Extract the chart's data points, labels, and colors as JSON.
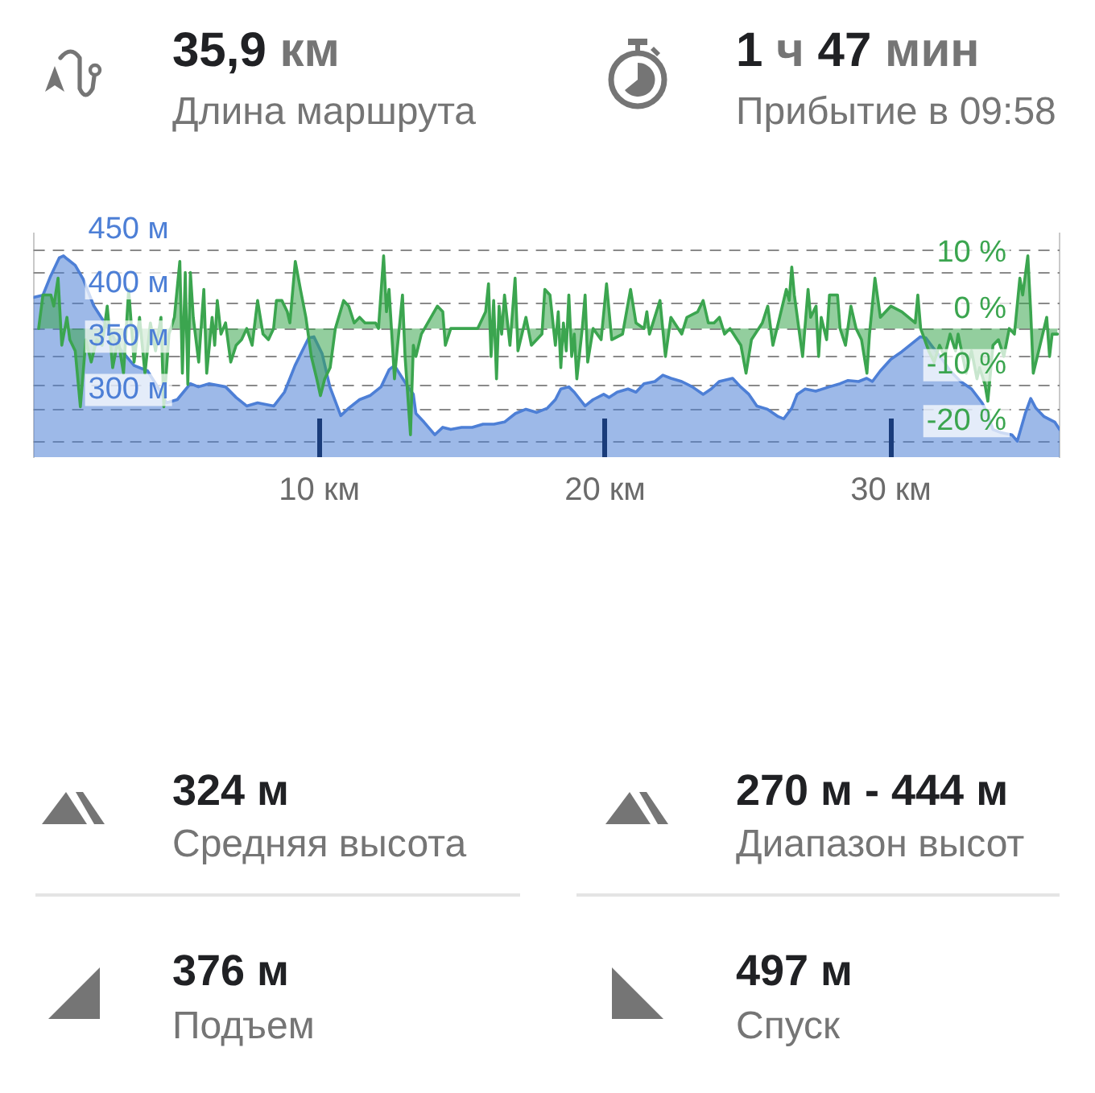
{
  "chart_data": [
    {
      "type": "other",
      "annotations": [
        "35,9 км",
        "Длина маршрута",
        "1 ч 47 мин",
        "Прибытие в 09:58"
      ]
    },
    {
      "type": "area",
      "xlim": [
        0,
        35.9
      ],
      "xticks": [
        {
          "value": 10,
          "label": "10 км"
        },
        {
          "value": 20,
          "label": "20 км"
        },
        {
          "value": 30,
          "label": "30 км"
        }
      ],
      "ylim": [
        255,
        465
      ],
      "yticks": [
        {
          "value": 300,
          "label": "300 м"
        },
        {
          "value": 350,
          "label": "350 м"
        },
        {
          "value": 400,
          "label": "400 м"
        },
        {
          "value": 450,
          "label": "450 м"
        }
      ],
      "y2lim": [
        -23,
        17
      ],
      "y2ticks": [
        {
          "value": -20,
          "label": "-20 %"
        },
        {
          "value": -10,
          "label": "-10 %"
        },
        {
          "value": 0,
          "label": "0 %"
        },
        {
          "value": 10,
          "label": "10 %"
        }
      ],
      "grid": "y",
      "marker": "none",
      "series": [
        {
          "color": "#4d7fd6",
          "x": [
            0,
            0.33,
            0.6,
            0.9,
            1.05,
            1.18,
            1.46,
            1.74,
            2.11,
            2.59,
            3.05,
            3.52,
            3.99,
            4.46,
            4.65,
            5.03,
            5.49,
            5.77,
            6.15,
            6.72,
            7.09,
            7.46,
            7.84,
            8.41,
            8.78,
            9.15,
            9.63,
            9.81,
            10.1,
            10.37,
            10.75,
            11.03,
            11.41,
            11.79,
            12.16,
            12.44,
            12.63,
            12.91,
            13.1,
            13.29,
            13.38,
            13.66,
            14.04,
            14.32,
            14.6,
            14.98,
            15.35,
            15.73,
            16.11,
            16.48,
            16.86,
            17.23,
            17.61,
            17.98,
            18.26,
            18.45,
            18.73,
            18.92,
            19.3,
            19.58,
            19.95,
            20.14,
            20.42,
            20.8,
            21.08,
            21.36,
            21.74,
            22.02,
            22.3,
            22.68,
            23.05,
            23.43,
            23.71,
            23.99,
            24.46,
            24.74,
            25.03,
            25.31,
            25.68,
            26.06,
            26.25,
            26.53,
            26.72,
            27.0,
            27.37,
            27.84,
            28.22,
            28.5,
            28.87,
            29.15,
            29.35,
            29.63,
            30.0,
            30.38,
            30.75,
            31.03,
            31.22,
            31.5,
            31.79,
            32.07,
            32.44,
            32.82,
            33.19,
            33.38,
            33.57,
            33.85,
            34.23,
            34.42,
            34.7,
            34.89,
            35.07,
            35.36,
            35.73,
            35.9
          ],
          "values": [
            405,
            407,
            425,
            442,
            444,
            441,
            435,
            422,
            397,
            377,
            356,
            341,
            336,
            316,
            306,
            309,
            324,
            321,
            324,
            321,
            311,
            303,
            306,
            303,
            316,
            341,
            367,
            368,
            352,
            321,
            294,
            301,
            309,
            313,
            321,
            337,
            341,
            329,
            321,
            314,
            296,
            288,
            276,
            283,
            281,
            283,
            283,
            286,
            286,
            288,
            296,
            300,
            297,
            301,
            309,
            319,
            321,
            316,
            303,
            309,
            314,
            311,
            316,
            319,
            316,
            324,
            326,
            332,
            329,
            326,
            321,
            314,
            319,
            326,
            329,
            321,
            314,
            303,
            300,
            293,
            291,
            301,
            314,
            319,
            317,
            321,
            324,
            327,
            326,
            329,
            326,
            336,
            347,
            354,
            362,
            368,
            367,
            357,
            347,
            336,
            326,
            319,
            306,
            296,
            281,
            278,
            276,
            270,
            296,
            310,
            301,
            293,
            288,
            281
          ]
        },
        {
          "color": "#3ba54f",
          "axis": "y2",
          "x": [
            0.18,
            0.33,
            0.61,
            0.71,
            0.86,
            0.99,
            1.17,
            1.27,
            1.46,
            1.64,
            1.83,
            2.02,
            2.21,
            2.4,
            2.58,
            2.77,
            2.96,
            3.15,
            3.33,
            3.52,
            3.71,
            3.9,
            4.09,
            4.27,
            4.46,
            4.56,
            4.74,
            4.93,
            5.12,
            5.21,
            5.31,
            5.4,
            5.49,
            5.59,
            5.78,
            5.96,
            6.06,
            6.25,
            6.34,
            6.43,
            6.56,
            6.72,
            6.9,
            7.09,
            7.28,
            7.46,
            7.65,
            7.84,
            8.03,
            8.22,
            8.4,
            8.5,
            8.69,
            8.88,
            8.97,
            9.16,
            9.34,
            9.53,
            9.72,
            9.91,
            10.04,
            10.19,
            10.38,
            10.56,
            10.85,
            11.03,
            11.22,
            11.41,
            11.6,
            11.97,
            12.07,
            12.25,
            12.35,
            12.44,
            12.63,
            12.72,
            12.91,
            13.0,
            13.19,
            13.29,
            13.38,
            13.57,
            14.13,
            14.32,
            14.41,
            14.6,
            14.98,
            15.54,
            15.82,
            15.92,
            16.01,
            16.1,
            16.2,
            16.29,
            16.38,
            16.48,
            16.67,
            16.85,
            16.95,
            17.23,
            17.42,
            17.79,
            17.89,
            18.07,
            18.26,
            18.36,
            18.45,
            18.54,
            18.64,
            18.73,
            18.83,
            18.92,
            19.01,
            19.2,
            19.3,
            19.39,
            19.58,
            19.86,
            20.05,
            20.23,
            20.61,
            20.89,
            21.08,
            21.36,
            21.46,
            21.55,
            21.92,
            22.11,
            22.3,
            22.68,
            22.86,
            23.24,
            23.43,
            23.61,
            23.81,
            24.0,
            24.18,
            24.37,
            24.75,
            24.93,
            25.12,
            25.5,
            25.69,
            25.87,
            26.06,
            26.34,
            26.44,
            26.53,
            26.62,
            26.91,
            27.1,
            27.19,
            27.38,
            27.47,
            27.56,
            27.75,
            27.85,
            28.13,
            28.22,
            28.41,
            28.6,
            28.78,
            28.97,
            29.16,
            29.25,
            29.44,
            29.63,
            30.0,
            30.38,
            30.85,
            30.94,
            31.04,
            31.32,
            31.51,
            31.7,
            31.88,
            32.07,
            32.26,
            32.35,
            32.63,
            32.82,
            33.01,
            33.1,
            33.29,
            33.39,
            33.48,
            33.57,
            33.76,
            33.95,
            34.14,
            34.32,
            34.51,
            34.61,
            34.79,
            34.89,
            34.98,
            35.17,
            35.45,
            35.55,
            35.64,
            35.83
          ],
          "values": [
            0,
            6,
            6,
            4,
            9,
            -3,
            2,
            -2,
            -4,
            -14,
            -2,
            -6,
            -2,
            -3,
            4,
            -7,
            -2,
            -8,
            7,
            -6,
            2,
            -8,
            1,
            -4,
            2,
            -14,
            -1,
            2,
            12,
            -8,
            10,
            -10,
            10,
            2,
            -6,
            7,
            -8,
            2,
            -3,
            5,
            -1,
            1,
            -6,
            -3,
            -2,
            0,
            -3,
            5,
            -1,
            -2,
            0,
            5,
            5,
            3,
            1,
            12,
            7,
            2,
            -5,
            -9,
            -12,
            -9,
            -7,
            0,
            5,
            4,
            1,
            2,
            1,
            1,
            0,
            13,
            3,
            7,
            -9,
            -4,
            6,
            -5,
            -19,
            -3,
            -5,
            -1,
            4,
            3,
            -3,
            0,
            0,
            0,
            3,
            8,
            -5,
            5,
            -9,
            4,
            -1,
            6,
            -3,
            9,
            -4,
            2,
            -3,
            -1,
            7,
            6,
            -3,
            3,
            -7,
            1,
            -4,
            6,
            -5,
            -1,
            -9,
            0,
            6,
            -6,
            0,
            -2,
            8,
            -2,
            -1,
            7,
            1,
            0,
            3,
            -1,
            5,
            -5,
            2,
            -1,
            2,
            3,
            5,
            1,
            1,
            2,
            -1,
            0,
            -3,
            -8,
            -2,
            1,
            4,
            -3,
            1,
            7,
            5,
            11,
            6,
            -5,
            7,
            2,
            4,
            -5,
            2,
            -2,
            6,
            6,
            0,
            -3,
            4,
            0,
            -2,
            -8,
            -1,
            9,
            2,
            4,
            3,
            1,
            6,
            0,
            -4,
            -6,
            -3,
            -5,
            -1,
            -4,
            -1,
            -8,
            -4,
            -9,
            -7,
            -10,
            -13,
            -8,
            -3,
            -2,
            -5,
            0,
            -1,
            9,
            6,
            13,
            3,
            -8,
            -4,
            2,
            -5,
            -1,
            -1
          ]
        }
      ]
    },
    {
      "type": "other",
      "annotations": [
        "324 м",
        "Средняя высота",
        "270 м - 444 м",
        "Диапазон высот",
        "376 м",
        "Подъем",
        "497 м",
        "Спуск"
      ]
    }
  ]
}
